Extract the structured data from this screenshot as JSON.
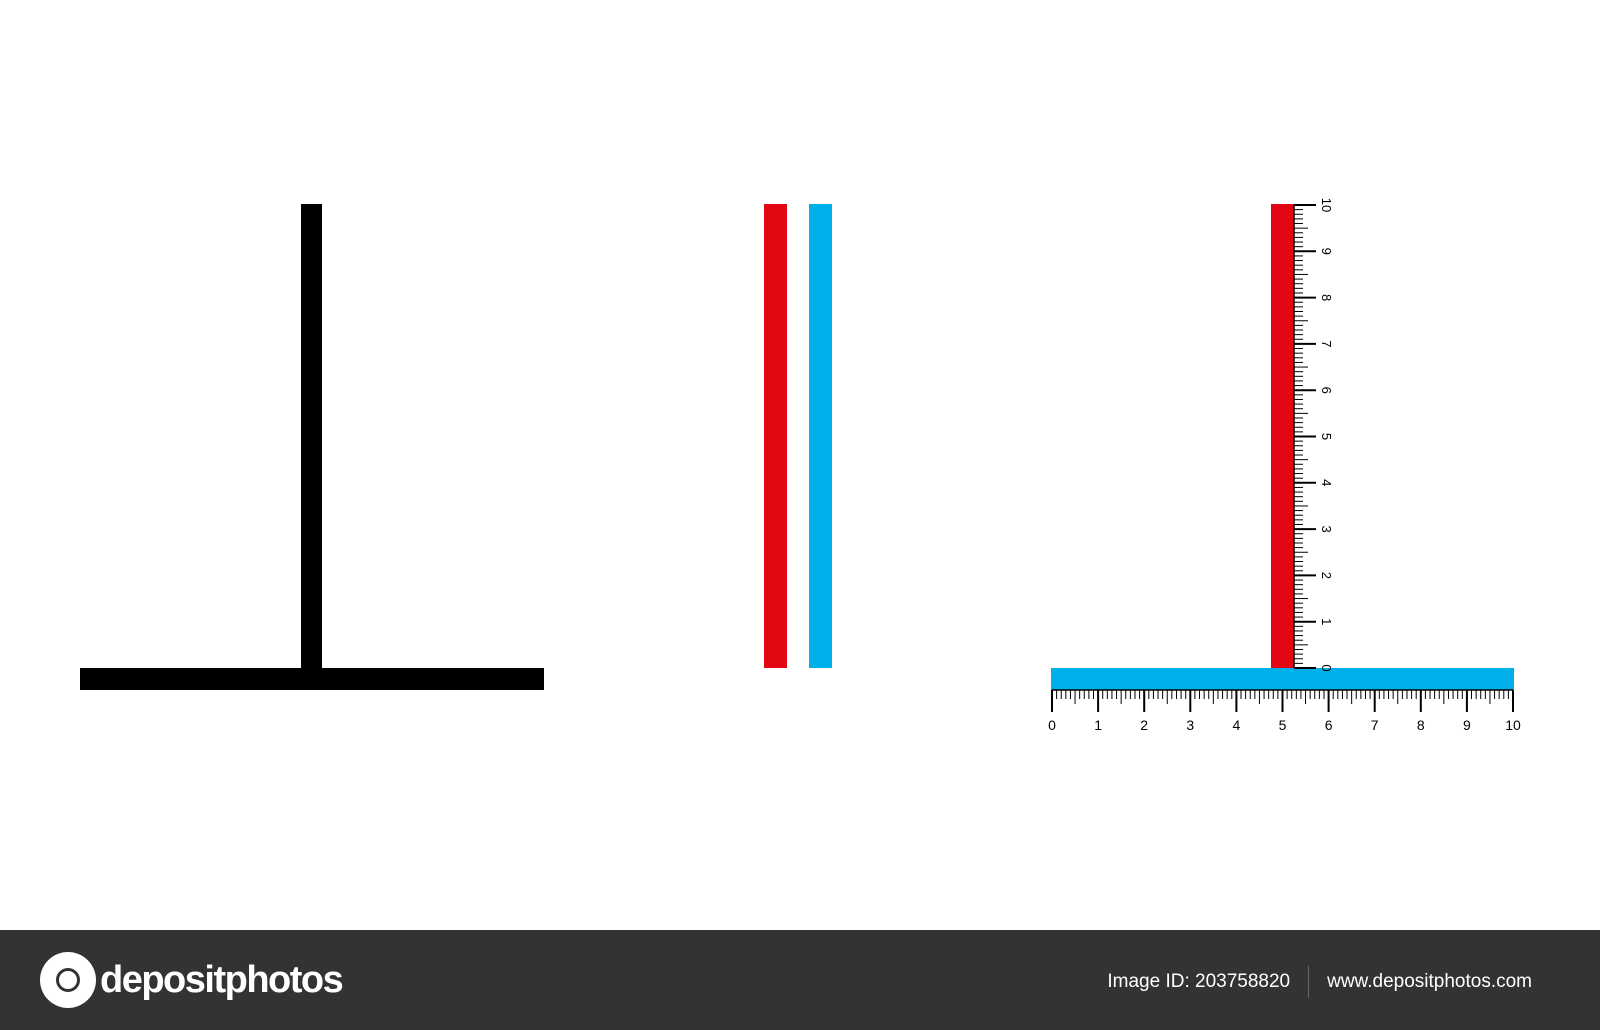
{
  "colors": {
    "black": "#000000",
    "red": "#e30613",
    "blue": "#00b0ea",
    "footer": "#333333"
  },
  "ruler": {
    "horizontal_labels": [
      "0",
      "1",
      "2",
      "3",
      "4",
      "5",
      "6",
      "7",
      "8",
      "9",
      "10"
    ],
    "vertical_labels": [
      "0",
      "1",
      "2",
      "3",
      "4",
      "5",
      "6",
      "7",
      "8",
      "9",
      "10"
    ],
    "minor_divisions_per_unit": 10
  },
  "footer": {
    "logo_text": "depositphotos",
    "image_id": "Image ID: 203758820",
    "site": "www.depositphotos.com"
  }
}
